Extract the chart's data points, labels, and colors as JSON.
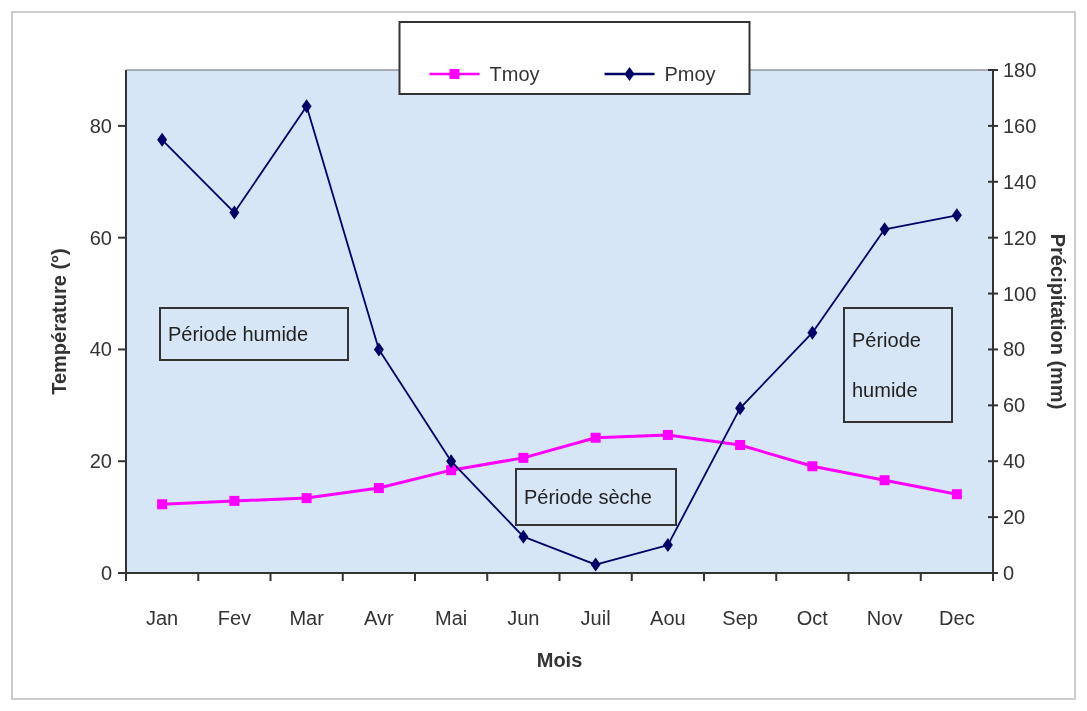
{
  "chart_data": {
    "type": "line",
    "xlabel": "Mois",
    "ylabel": "Température (°)",
    "y2label": "Précipitation (mm)",
    "categories": [
      "Jan",
      "Fev",
      "Mar",
      "Avr",
      "Mai",
      "Jun",
      "Juil",
      "Aou",
      "Sep",
      "Oct",
      "Nov",
      "Dec"
    ],
    "series": [
      {
        "name": "Tmoy",
        "color": "#ff00ff",
        "marker": "square",
        "values": [
          12.3,
          12.9,
          13.4,
          15.2,
          18.4,
          20.6,
          24.2,
          24.7,
          22.9,
          19.1,
          16.6,
          14.1
        ]
      },
      {
        "name": "Pmoy",
        "color": "#000066",
        "marker": "diamond",
        "axis": "y2",
        "values": [
          155,
          129,
          167,
          80,
          40,
          13,
          3,
          10,
          59,
          86,
          123,
          128
        ]
      }
    ],
    "ylim": [
      0,
      90
    ],
    "yticks": [
      0,
      20,
      40,
      60,
      80
    ],
    "y2lim": [
      0,
      180
    ],
    "y2ticks": [
      0,
      20,
      40,
      60,
      80,
      100,
      120,
      140,
      160,
      180
    ],
    "grid": false,
    "legend": "top",
    "annotations": [
      "Période humide",
      "Période sèche",
      "Période humide"
    ]
  }
}
